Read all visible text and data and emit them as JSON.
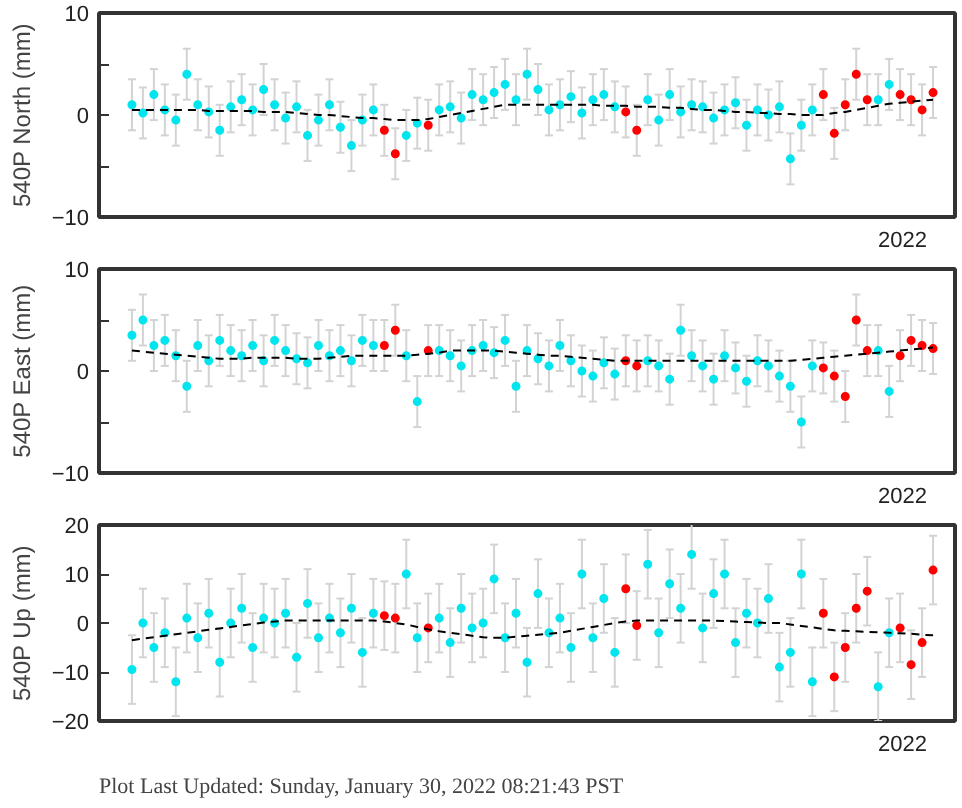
{
  "chart_data": [
    {
      "type": "scatter",
      "ylabel": "540P North (mm)",
      "marker": "circle",
      "annotations": [
        "2022"
      ],
      "categories": [
        null,
        null,
        null,
        null,
        null,
        null,
        null,
        null,
        null,
        null,
        null,
        null,
        null,
        null,
        null,
        null,
        null,
        null,
        null,
        null,
        null,
        null,
        null,
        null,
        null,
        null,
        null,
        null,
        null,
        null,
        null,
        null,
        null,
        null,
        null,
        null,
        null,
        null,
        null,
        null,
        null,
        null,
        null,
        null,
        null,
        null,
        null,
        null,
        null,
        null,
        null,
        null,
        null,
        null,
        null,
        null,
        null,
        null,
        null,
        null,
        null,
        null,
        null,
        null,
        null,
        null,
        null,
        null,
        null,
        null,
        null,
        null,
        null,
        null
      ],
      "ylim": [
        -10,
        10
      ],
      "yticks": [
        {
          "value": -10,
          "label": "−10"
        },
        {
          "value": -5,
          "label": null
        },
        0,
        {
          "value": 5,
          "label": null
        },
        10
      ],
      "series": [
        {
          "color": "#00e5ee",
          "values": [
            1,
            0.2,
            2,
            0.5,
            -0.5,
            4,
            1,
            0.3,
            -1.5,
            0.8,
            1.5,
            0.5,
            2.5,
            1,
            -0.3,
            0.8,
            -2,
            -0.5,
            1,
            -1.2,
            -3,
            -0.5,
            0.5,
            null,
            null,
            -2,
            -0.8,
            null,
            0.5,
            0.8,
            -0.3,
            2,
            1.5,
            2.2,
            3,
            1.5,
            4,
            2.5,
            0.5,
            1,
            1.8,
            0.2,
            1.5,
            2,
            0.8,
            null,
            null,
            1.5,
            -0.5,
            2,
            0.3,
            1,
            0.8,
            -0.3,
            0.5,
            1.2,
            -1,
            0.5,
            0,
            0.8,
            -4.3,
            -1,
            0.5,
            null,
            null,
            null,
            null,
            null,
            1.5,
            3,
            null,
            null,
            null,
            null
          ],
          "errors": [
            2.5,
            2.5,
            2.5,
            2.5,
            2.5,
            2.5,
            2.5,
            2.5,
            2.5,
            2.5,
            2.5,
            2.5,
            2.5,
            2.5,
            2.5,
            2.5,
            2.5,
            2.5,
            2.5,
            2.5,
            2.5,
            2.5,
            2.5,
            null,
            null,
            2.5,
            2.5,
            null,
            2.5,
            2.5,
            2.5,
            2.5,
            2.5,
            2.5,
            2.5,
            2.5,
            2.5,
            2.5,
            2.5,
            2.5,
            2.5,
            2.5,
            2.5,
            2.5,
            2.5,
            null,
            null,
            2.5,
            2.5,
            2.5,
            2.5,
            2.5,
            2.5,
            2.5,
            2.5,
            2.5,
            2.5,
            2.5,
            2.5,
            2.5,
            2.5,
            2.5,
            2.5,
            null,
            null,
            null,
            null,
            null,
            2.5,
            2.5,
            null,
            null,
            null,
            null
          ]
        },
        {
          "color": "#ff0000",
          "values": [
            null,
            null,
            null,
            null,
            null,
            null,
            null,
            null,
            null,
            null,
            null,
            null,
            null,
            null,
            null,
            null,
            null,
            null,
            null,
            null,
            null,
            null,
            null,
            -1.5,
            -3.8,
            null,
            null,
            -1,
            null,
            null,
            null,
            null,
            null,
            null,
            null,
            null,
            null,
            null,
            null,
            null,
            null,
            null,
            null,
            null,
            null,
            0.3,
            -1.5,
            null,
            null,
            null,
            null,
            null,
            null,
            null,
            null,
            null,
            null,
            null,
            null,
            null,
            null,
            null,
            null,
            2,
            -1.8,
            1,
            4,
            1.5,
            null,
            null,
            2,
            1.5,
            0.5,
            2.2
          ],
          "errors": [
            null,
            null,
            null,
            null,
            null,
            null,
            null,
            null,
            null,
            null,
            null,
            null,
            null,
            null,
            null,
            null,
            null,
            null,
            null,
            null,
            null,
            null,
            null,
            2.5,
            2.5,
            null,
            null,
            2.5,
            null,
            null,
            null,
            null,
            null,
            null,
            null,
            null,
            null,
            null,
            null,
            null,
            null,
            null,
            null,
            null,
            null,
            2.5,
            2.5,
            null,
            null,
            null,
            null,
            null,
            null,
            null,
            null,
            null,
            null,
            null,
            null,
            null,
            null,
            null,
            null,
            2.5,
            2.5,
            2.5,
            2.5,
            2.5,
            null,
            null,
            2.5,
            2.5,
            2.5,
            2.5
          ]
        },
        {
          "type": "line",
          "marker": "none",
          "color": "#000000",
          "line_style": "dashed",
          "values": [
            0.5,
            0.5,
            0.5,
            0.5,
            0.5,
            0.5,
            0.5,
            0.4,
            0.4,
            0.4,
            0.4,
            0.4,
            0.3,
            0.3,
            0.3,
            0.2,
            0.1,
            0,
            0,
            -0.1,
            -0.2,
            -0.3,
            -0.3,
            -0.4,
            -0.5,
            -0.5,
            -0.5,
            -0.4,
            -0.2,
            0,
            0.2,
            0.4,
            0.6,
            0.8,
            1,
            1,
            1,
            1,
            1,
            1,
            1,
            1,
            1,
            0.9,
            0.9,
            0.9,
            0.8,
            0.8,
            0.8,
            0.7,
            0.7,
            0.6,
            0.5,
            0.5,
            0.4,
            0.3,
            0.3,
            0.2,
            0.2,
            0.1,
            0.1,
            0,
            0,
            0,
            0.2,
            0.3,
            0.5,
            0.7,
            0.9,
            1.1,
            1.2,
            1.3,
            1.4,
            1.5
          ]
        }
      ]
    },
    {
      "type": "scatter",
      "ylabel": "540P East (mm)",
      "marker": "circle",
      "annotations": [
        "2022"
      ],
      "categories": [
        null,
        null,
        null,
        null,
        null,
        null,
        null,
        null,
        null,
        null,
        null,
        null,
        null,
        null,
        null,
        null,
        null,
        null,
        null,
        null,
        null,
        null,
        null,
        null,
        null,
        null,
        null,
        null,
        null,
        null,
        null,
        null,
        null,
        null,
        null,
        null,
        null,
        null,
        null,
        null,
        null,
        null,
        null,
        null,
        null,
        null,
        null,
        null,
        null,
        null,
        null,
        null,
        null,
        null,
        null,
        null,
        null,
        null,
        null,
        null,
        null,
        null,
        null,
        null,
        null,
        null,
        null,
        null,
        null,
        null,
        null,
        null,
        null,
        null
      ],
      "ylim": [
        -10,
        10
      ],
      "yticks": [
        {
          "value": -10,
          "label": "−10"
        },
        {
          "value": -5,
          "label": null
        },
        0,
        {
          "value": 5,
          "label": null
        },
        10
      ],
      "series": [
        {
          "color": "#00e5ee",
          "values": [
            3.5,
            5,
            2.5,
            3,
            1.5,
            -1.5,
            2.5,
            1,
            3,
            2,
            1.5,
            2.5,
            1,
            3,
            2,
            1.2,
            0.8,
            2.5,
            1.5,
            2,
            1,
            3,
            2.5,
            null,
            null,
            1.5,
            -3,
            null,
            2,
            1.5,
            0.5,
            2,
            2.5,
            1.8,
            3,
            -1.5,
            2,
            1.2,
            0.5,
            2.5,
            1,
            0,
            -0.5,
            0.8,
            -0.3,
            null,
            null,
            1,
            0.5,
            -0.8,
            4,
            1.5,
            0.5,
            -0.8,
            1.5,
            0.3,
            -1,
            1,
            0.5,
            -0.5,
            -1.5,
            -5,
            0.5,
            null,
            null,
            null,
            null,
            null,
            2,
            -2,
            null,
            null,
            null,
            null
          ],
          "errors": [
            2.5,
            2.5,
            2.5,
            2.5,
            2.5,
            2.5,
            2.5,
            2.5,
            2.5,
            2.5,
            2.5,
            2.5,
            2.5,
            2.5,
            2.5,
            2.5,
            2.5,
            2.5,
            2.5,
            2.5,
            2.5,
            2.5,
            2.5,
            null,
            null,
            2.5,
            2.5,
            null,
            2.5,
            2.5,
            2.5,
            2.5,
            2.5,
            2.5,
            2.5,
            2.5,
            2.5,
            2.5,
            2.5,
            2.5,
            2.5,
            2.5,
            2.5,
            2.5,
            2.5,
            null,
            null,
            2.5,
            2.5,
            2.5,
            2.5,
            2.5,
            2.5,
            2.5,
            2.5,
            2.5,
            2.5,
            2.5,
            2.5,
            2.5,
            2.5,
            2.5,
            2.5,
            null,
            null,
            null,
            null,
            null,
            2.5,
            2.5,
            null,
            null,
            null,
            null
          ]
        },
        {
          "color": "#ff0000",
          "values": [
            null,
            null,
            null,
            null,
            null,
            null,
            null,
            null,
            null,
            null,
            null,
            null,
            null,
            null,
            null,
            null,
            null,
            null,
            null,
            null,
            null,
            null,
            null,
            2.5,
            4,
            null,
            null,
            2,
            null,
            null,
            null,
            null,
            null,
            null,
            null,
            null,
            null,
            null,
            null,
            null,
            null,
            null,
            null,
            null,
            null,
            1,
            0.5,
            null,
            null,
            null,
            null,
            null,
            null,
            null,
            null,
            null,
            null,
            null,
            null,
            null,
            null,
            null,
            null,
            0.3,
            -0.5,
            -2.5,
            5,
            2,
            null,
            null,
            1.5,
            3,
            2.5,
            2.2
          ],
          "errors": [
            null,
            null,
            null,
            null,
            null,
            null,
            null,
            null,
            null,
            null,
            null,
            null,
            null,
            null,
            null,
            null,
            null,
            null,
            null,
            null,
            null,
            null,
            null,
            2.5,
            2.5,
            null,
            null,
            2.5,
            null,
            null,
            null,
            null,
            null,
            null,
            null,
            null,
            null,
            null,
            null,
            null,
            null,
            null,
            null,
            null,
            null,
            2.5,
            2.5,
            null,
            null,
            null,
            null,
            null,
            null,
            null,
            null,
            null,
            null,
            null,
            null,
            null,
            null,
            null,
            null,
            2.5,
            2.5,
            2.5,
            2.5,
            2.5,
            null,
            null,
            2.5,
            2.5,
            2.5,
            2.5
          ]
        },
        {
          "type": "line",
          "marker": "none",
          "color": "#000000",
          "line_style": "dashed",
          "values": [
            2,
            1.9,
            1.8,
            1.7,
            1.6,
            1.5,
            1.4,
            1.3,
            1.2,
            1.2,
            1.2,
            1.3,
            1.3,
            1.3,
            1.3,
            1.2,
            1.2,
            1.2,
            1.3,
            1.4,
            1.5,
            1.5,
            1.5,
            1.5,
            1.5,
            1.5,
            1.6,
            1.7,
            1.8,
            2,
            2,
            2,
            2,
            2,
            1.9,
            1.8,
            1.7,
            1.6,
            1.5,
            1.5,
            1.4,
            1.3,
            1.2,
            1.1,
            1,
            1,
            1,
            1,
            1,
            1,
            1,
            1,
            1,
            1,
            1,
            1,
            1,
            1,
            1,
            1,
            1,
            1.1,
            1.2,
            1.3,
            1.4,
            1.5,
            1.6,
            1.7,
            1.8,
            1.9,
            2,
            2.1,
            2.2,
            2.3
          ]
        }
      ]
    },
    {
      "type": "scatter",
      "ylabel": "540P Up (mm)",
      "marker": "circle",
      "annotations": [
        "2022",
        "Plot Last Updated:   Sunday, January 30, 2022 08:21:43 PST"
      ],
      "categories": [
        null,
        null,
        null,
        null,
        null,
        null,
        null,
        null,
        null,
        null,
        null,
        null,
        null,
        null,
        null,
        null,
        null,
        null,
        null,
        null,
        null,
        null,
        null,
        null,
        null,
        null,
        null,
        null,
        null,
        null,
        null,
        null,
        null,
        null,
        null,
        null,
        null,
        null,
        null,
        null,
        null,
        null,
        null,
        null,
        null,
        null,
        null,
        null,
        null,
        null,
        null,
        null,
        null,
        null,
        null,
        null,
        null,
        null,
        null,
        null,
        null,
        null,
        null,
        null,
        null,
        null,
        null,
        null,
        null,
        null,
        null,
        null,
        null,
        null
      ],
      "ylim": [
        -20,
        20
      ],
      "yticks": [
        {
          "value": -20,
          "label": "−20"
        },
        {
          "value": -10,
          "label": "−10"
        },
        0,
        10,
        20
      ],
      "series": [
        {
          "color": "#00e5ee",
          "values": [
            -9.5,
            0,
            -5,
            -2,
            -12,
            1,
            -3,
            2,
            -8,
            0,
            3,
            -5,
            1,
            0,
            2,
            -7,
            4,
            -3,
            1,
            -2,
            3,
            -6,
            2,
            null,
            null,
            10,
            -3,
            null,
            1,
            -4,
            3,
            -1,
            0,
            9,
            -3,
            2,
            -8,
            6,
            -2,
            1,
            -5,
            10,
            -3,
            5,
            -6,
            null,
            null,
            12,
            -2,
            8,
            3,
            14,
            -1,
            6,
            10,
            -4,
            2,
            0,
            5,
            -9,
            -6,
            10,
            -12,
            null,
            null,
            null,
            null,
            null,
            -13,
            -2,
            null,
            null,
            null,
            null
          ],
          "errors": [
            7,
            7,
            7,
            7,
            7,
            7,
            7,
            7,
            7,
            7,
            7,
            7,
            7,
            7,
            7,
            7,
            7,
            7,
            7,
            7,
            7,
            7,
            7,
            null,
            null,
            7,
            7,
            null,
            7,
            7,
            7,
            7,
            7,
            7,
            7,
            7,
            7,
            7,
            7,
            7,
            7,
            7,
            7,
            7,
            7,
            null,
            null,
            7,
            7,
            7,
            7,
            7,
            7,
            7,
            7,
            7,
            7,
            7,
            7,
            7,
            7,
            7,
            7,
            null,
            null,
            null,
            null,
            null,
            7,
            7,
            null,
            null,
            null,
            null
          ]
        },
        {
          "color": "#ff0000",
          "values": [
            null,
            null,
            null,
            null,
            null,
            null,
            null,
            null,
            null,
            null,
            null,
            null,
            null,
            null,
            null,
            null,
            null,
            null,
            null,
            null,
            null,
            null,
            null,
            1.5,
            1,
            null,
            null,
            -1,
            null,
            null,
            null,
            null,
            null,
            null,
            null,
            null,
            null,
            null,
            null,
            null,
            null,
            null,
            null,
            null,
            null,
            7,
            -0.5,
            null,
            null,
            null,
            null,
            null,
            null,
            null,
            null,
            null,
            null,
            null,
            null,
            null,
            null,
            null,
            null,
            2,
            -11,
            -5,
            3,
            6.5,
            null,
            null,
            -1,
            -8.5,
            -4,
            10.8
          ],
          "errors": [
            null,
            null,
            null,
            null,
            null,
            null,
            null,
            null,
            null,
            null,
            null,
            null,
            null,
            null,
            null,
            null,
            null,
            null,
            null,
            null,
            null,
            null,
            null,
            7,
            7,
            null,
            null,
            7,
            null,
            null,
            null,
            null,
            null,
            null,
            null,
            null,
            null,
            null,
            null,
            null,
            null,
            null,
            null,
            null,
            null,
            7,
            7,
            null,
            null,
            null,
            null,
            null,
            null,
            null,
            null,
            null,
            null,
            null,
            null,
            null,
            null,
            null,
            null,
            7,
            7,
            7,
            7,
            7,
            null,
            null,
            7,
            7,
            7,
            7
          ]
        },
        {
          "type": "line",
          "marker": "none",
          "color": "#000000",
          "line_style": "dashed",
          "values": [
            -3.5,
            -3.2,
            -2.9,
            -2.6,
            -2.3,
            -2,
            -1.7,
            -1.4,
            -1.1,
            -0.8,
            -0.5,
            -0.2,
            0.1,
            0.3,
            0.5,
            0.5,
            0.5,
            0.5,
            0.5,
            0.5,
            0.5,
            0.5,
            0.5,
            0.3,
            0,
            -0.3,
            -0.8,
            -1.3,
            -1.7,
            -2,
            -2.3,
            -2.6,
            -2.9,
            -3,
            -3,
            -2.8,
            -2.6,
            -2.4,
            -2.2,
            -2,
            -1.6,
            -1.2,
            -0.8,
            -0.4,
            0,
            0.3,
            0.5,
            0.5,
            0.5,
            0.5,
            0.5,
            0.5,
            0.5,
            0.5,
            0.4,
            0.3,
            0.2,
            0.1,
            0,
            0,
            -0.3,
            -0.6,
            -0.9,
            -1.2,
            -1.5,
            -1.6,
            -1.7,
            -1.8,
            -1.9,
            -2,
            -2.1,
            -2.2,
            -2.4,
            -2.5
          ]
        }
      ]
    }
  ]
}
